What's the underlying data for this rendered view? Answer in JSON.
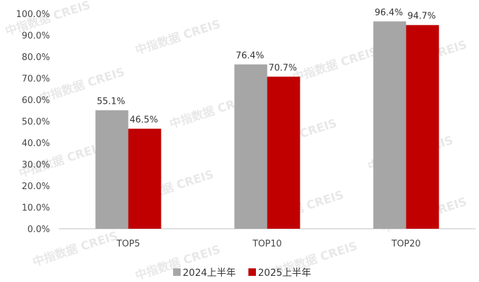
{
  "chart_data": {
    "type": "bar",
    "categories": [
      "TOP5",
      "TOP10",
      "TOP20"
    ],
    "series": [
      {
        "name": "2024上半年",
        "values": [
          55.1,
          76.4,
          96.4
        ],
        "labels": [
          "55.1%",
          "76.4%",
          "96.4%"
        ],
        "color": "#a6a6a6"
      },
      {
        "name": "2025上半年",
        "values": [
          46.5,
          70.7,
          94.7
        ],
        "labels": [
          "46.5%",
          "70.7%",
          "94.7%"
        ],
        "color": "#c00000"
      }
    ],
    "ylim": [
      0,
      100
    ],
    "yticks": [
      "0.0%",
      "10.0%",
      "20.0%",
      "30.0%",
      "40.0%",
      "50.0%",
      "60.0%",
      "70.0%",
      "80.0%",
      "90.0%",
      "100.0%"
    ],
    "grid": false,
    "legend_position": "bottom-center"
  },
  "watermark": "中指数据 CREIS"
}
